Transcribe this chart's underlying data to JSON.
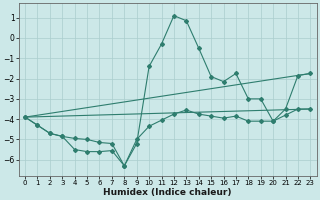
{
  "xlabel": "Humidex (Indice chaleur)",
  "bg_color": "#cce8e8",
  "line_color": "#2e7d6e",
  "grid_color": "#aacece",
  "xlim": [
    -0.5,
    23.5
  ],
  "ylim": [
    -6.8,
    1.7
  ],
  "yticks": [
    1,
    0,
    -1,
    -2,
    -3,
    -4,
    -5,
    -6
  ],
  "xticks": [
    0,
    1,
    2,
    3,
    4,
    5,
    6,
    7,
    8,
    9,
    10,
    11,
    12,
    13,
    14,
    15,
    16,
    17,
    18,
    19,
    20,
    21,
    22,
    23
  ],
  "lines": [
    {
      "x": [
        0,
        1,
        2,
        3,
        4,
        5,
        6,
        7,
        8,
        9,
        10,
        11,
        12,
        13,
        14,
        15,
        16,
        17,
        18,
        19,
        20,
        21,
        22,
        23
      ],
      "y": [
        -3.9,
        -4.3,
        -4.7,
        -4.85,
        -5.5,
        -5.6,
        -5.6,
        -5.55,
        -6.3,
        -5.2,
        -1.4,
        -0.3,
        1.1,
        0.85,
        -0.5,
        -1.9,
        -2.15,
        -1.75,
        -3.0,
        -3.0,
        -4.1,
        -3.5,
        -1.85,
        -1.75
      ],
      "marker": true
    },
    {
      "x": [
        0,
        1,
        2,
        3,
        4,
        5,
        6,
        7,
        8,
        9,
        10,
        11,
        12,
        13,
        14,
        15,
        16,
        17,
        18,
        19,
        20,
        21,
        22,
        23
      ],
      "y": [
        -3.9,
        -4.3,
        -4.7,
        -4.85,
        -4.95,
        -5.0,
        -5.15,
        -5.2,
        -6.3,
        -5.0,
        -4.35,
        -4.05,
        -3.75,
        -3.55,
        -3.75,
        -3.85,
        -3.95,
        -3.85,
        -4.1,
        -4.1,
        -4.1,
        -3.8,
        -3.5,
        -3.5
      ],
      "marker": true
    },
    {
      "x": [
        0,
        23
      ],
      "y": [
        -3.9,
        -1.75
      ],
      "marker": false
    },
    {
      "x": [
        0,
        23
      ],
      "y": [
        -3.9,
        -3.5
      ],
      "marker": false
    }
  ]
}
